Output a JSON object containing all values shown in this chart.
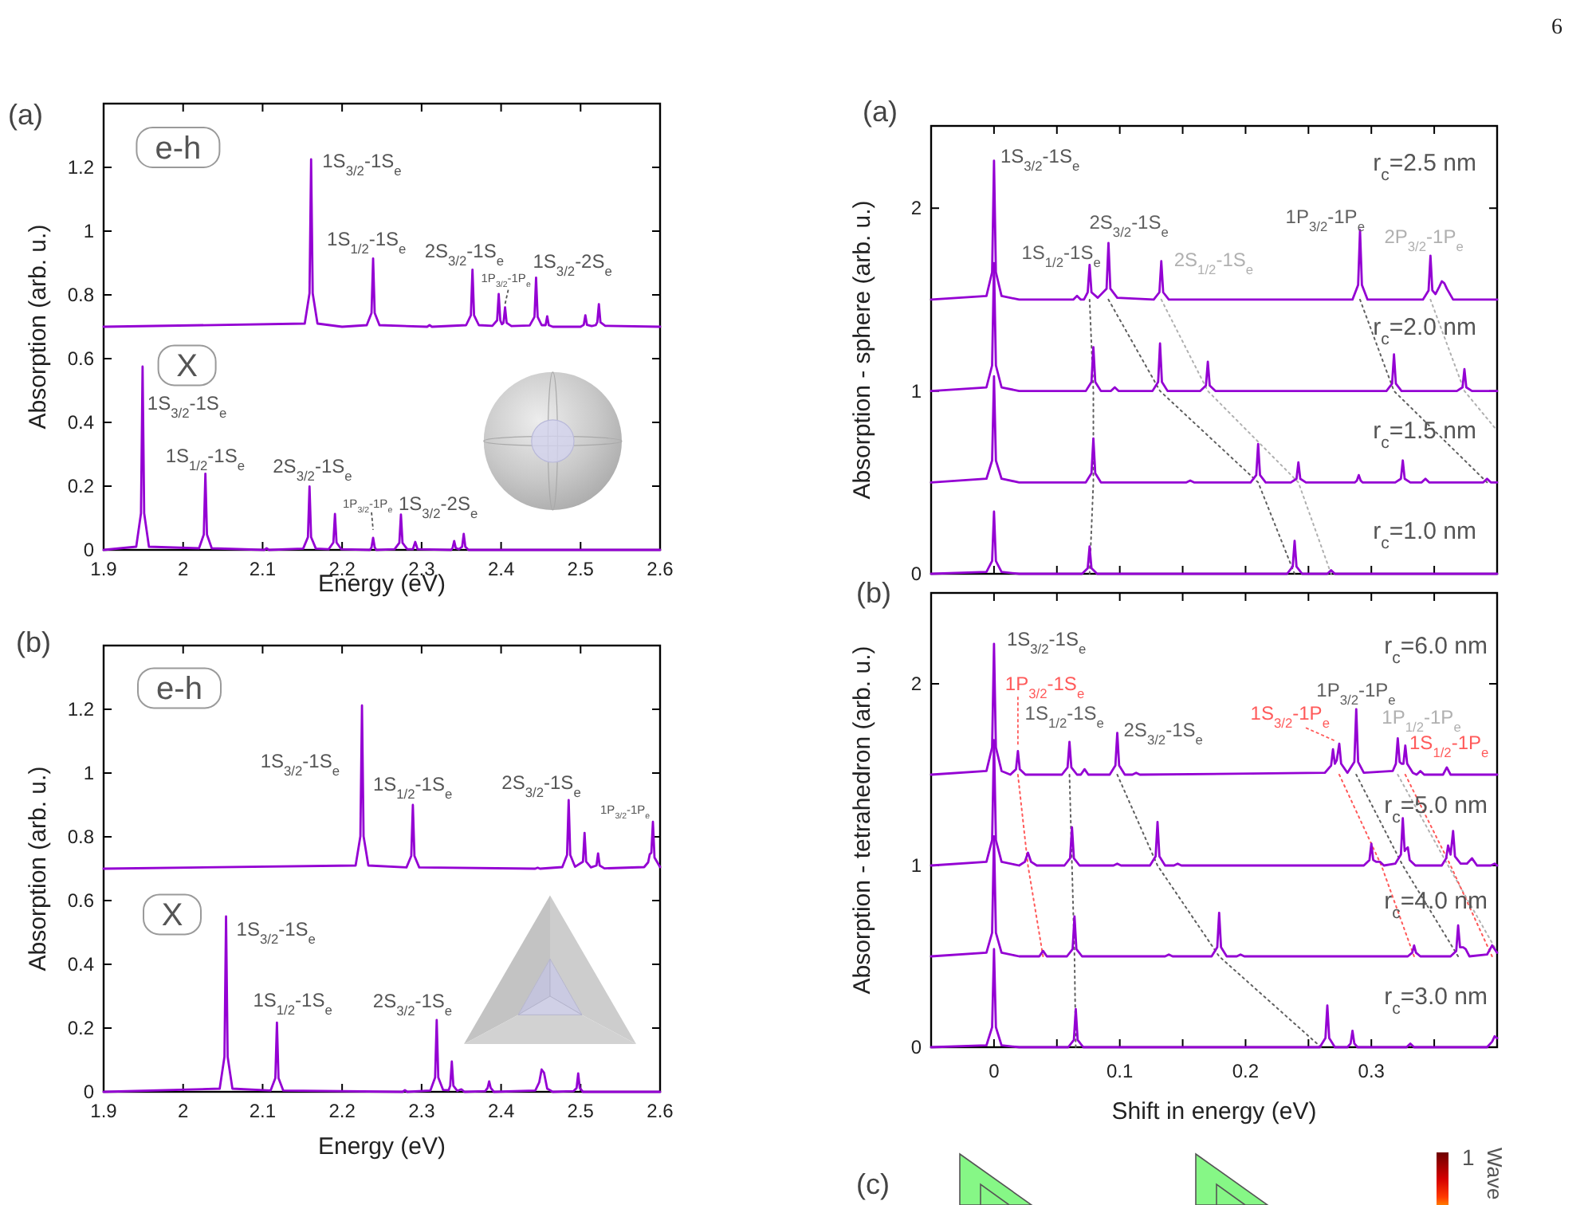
{
  "chart_data": [
    {
      "type": "line",
      "title": "(a)",
      "xlabel": "Energy (eV)",
      "ylabel": "Absorption (arb. u.)",
      "xlim": [
        1.9,
        2.6
      ],
      "ylim": [
        0,
        1.4
      ],
      "xticks": [
        1.9,
        2,
        2.1,
        2.2,
        2.3,
        2.4,
        2.5,
        2.6
      ],
      "yticks": [
        0,
        0.2,
        0.4,
        0.6,
        0.8,
        1,
        1.2
      ],
      "line_style": "solid",
      "series": [
        {
          "color": "#9400d3",
          "x": [
            1.9,
            2.153,
            2.159,
            2.161,
            2.163,
            2.169,
            2.2,
            2.231,
            2.237,
            2.239,
            2.241,
            2.247,
            2.307,
            2.31,
            2.313,
            2.356,
            2.362,
            2.364,
            2.366,
            2.372,
            2.389,
            2.395,
            2.397,
            2.399,
            2.401,
            2.403,
            2.405,
            2.407,
            2.413,
            2.436,
            2.442,
            2.444,
            2.446,
            2.451,
            2.456,
            2.458,
            2.46,
            2.465,
            2.5,
            2.504,
            2.506,
            2.508,
            2.514,
            2.519,
            2.521,
            2.523,
            2.525,
            2.531,
            2.6
          ],
          "values": [
            0.7,
            0.71,
            0.805,
            1.225,
            0.805,
            0.71,
            0.7,
            0.705,
            0.743,
            0.914,
            0.743,
            0.705,
            0.7,
            0.705,
            0.7,
            0.705,
            0.736,
            0.879,
            0.736,
            0.705,
            0.703,
            0.72,
            0.803,
            0.72,
            0.708,
            0.712,
            0.761,
            0.712,
            0.702,
            0.704,
            0.731,
            0.854,
            0.731,
            0.705,
            0.705,
            0.733,
            0.705,
            0.7,
            0.7,
            0.706,
            0.736,
            0.706,
            0.702,
            0.705,
            0.714,
            0.771,
            0.714,
            0.703,
            0.7
          ]
        },
        {
          "color": "#9400d3",
          "x": [
            1.9,
            1.941,
            1.947,
            1.949,
            1.951,
            1.957,
            2.02,
            2.026,
            2.028,
            2.03,
            2.036,
            2.102,
            2.105,
            2.108,
            2.151,
            2.157,
            2.159,
            2.161,
            2.167,
            2.183,
            2.189,
            2.191,
            2.193,
            2.199,
            2.235,
            2.237,
            2.239,
            2.241,
            2.243,
            2.266,
            2.272,
            2.274,
            2.276,
            2.282,
            2.289,
            2.292,
            2.295,
            2.337,
            2.339,
            2.341,
            2.343,
            2.347,
            2.351,
            2.353,
            2.355,
            2.359,
            2.6
          ],
          "values": [
            0,
            0.01,
            0.115,
            0.575,
            0.115,
            0.01,
            0.005,
            0.048,
            0.239,
            0.048,
            0.005,
            0,
            0.005,
            0,
            0.004,
            0.04,
            0.199,
            0.04,
            0.004,
            0.002,
            0.023,
            0.113,
            0.023,
            0.002,
            0,
            0.008,
            0.038,
            0.008,
            0,
            0.002,
            0.022,
            0.111,
            0.022,
            0.002,
            0.002,
            0.025,
            0.002,
            0,
            0.006,
            0.028,
            0.006,
            0.002,
            0.01,
            0.05,
            0.01,
            0,
            0
          ]
        }
      ],
      "annotations": [
        "e-h",
        "X",
        {
          "text": "1S$_{3/2}$-1S$_{e}$",
          "x": 2.161,
          "y": 1.225
        },
        {
          "text": "1S$_{1/2}$-1S$_{e}$",
          "x": 2.239,
          "y": 0.914
        },
        {
          "text": "2S$_{3/2}$-1S$_{e}$",
          "x": 2.364,
          "y": 0.879
        },
        {
          "text": "1P$_{3/2}$-1P$_{e}$",
          "x": 2.405,
          "y": 0.761
        },
        {
          "text": "1S$_{3/2}$-2S$_{e}$",
          "x": 2.444,
          "y": 0.854
        },
        {
          "text": "1S$_{3/2}$-1S$_{e}$",
          "x": 1.949,
          "y": 0.575
        },
        {
          "text": "1S$_{1/2}$-1S$_{e}$",
          "x": 2.028,
          "y": 0.239
        },
        {
          "text": "2S$_{3/2}$-1S$_{e}$",
          "x": 2.159,
          "y": 0.199
        },
        {
          "text": "1P$_{3/2}$-1P$_{e}$",
          "x": 2.239,
          "y": 0.038
        },
        {
          "text": "1S$_{3/2}$-2S$_{e}$",
          "x": 2.274,
          "y": 0.111
        }
      ]
    },
    {
      "type": "line",
      "title": "(b)",
      "xlabel": "Energy (eV)",
      "ylabel": "Absorption (arb. u.)",
      "xlim": [
        1.9,
        2.6
      ],
      "ylim": [
        0,
        1.4
      ],
      "xticks": [
        1.9,
        2,
        2.1,
        2.2,
        2.3,
        2.4,
        2.5,
        2.6
      ],
      "yticks": [
        0,
        0.2,
        0.4,
        0.6,
        0.8,
        1,
        1.2
      ],
      "line_style": "solid",
      "series": [
        {
          "color": "#9400d3",
          "x": [
            1.9,
            2.217,
            2.223,
            2.225,
            2.227,
            2.233,
            2.281,
            2.287,
            2.289,
            2.291,
            2.297,
            2.443,
            2.446,
            2.449,
            2.477,
            2.483,
            2.485,
            2.487,
            2.493,
            2.503,
            2.505,
            2.507,
            2.513,
            2.52,
            2.522,
            2.524,
            2.53,
            2.58,
            2.585,
            2.587,
            2.589,
            2.591,
            2.593,
            2.6
          ],
          "values": [
            0.7,
            0.71,
            0.802,
            1.212,
            0.802,
            0.71,
            0.704,
            0.74,
            0.9,
            0.74,
            0.704,
            0.7,
            0.703,
            0.7,
            0.705,
            0.743,
            0.915,
            0.743,
            0.706,
            0.722,
            0.812,
            0.722,
            0.704,
            0.71,
            0.748,
            0.71,
            0.701,
            0.705,
            0.72,
            0.745,
            0.75,
            0.847,
            0.735,
            0.705
          ]
        },
        {
          "color": "#9400d3",
          "x": [
            1.9,
            2.046,
            2.052,
            2.054,
            2.056,
            2.062,
            2.11,
            2.116,
            2.118,
            2.12,
            2.126,
            2.276,
            2.279,
            2.282,
            2.311,
            2.317,
            2.319,
            2.321,
            2.327,
            2.334,
            2.336,
            2.338,
            2.34,
            2.345,
            2.35,
            2.354,
            2.38,
            2.383,
            2.385,
            2.387,
            2.391,
            2.443,
            2.448,
            2.451,
            2.454,
            2.458,
            2.465,
            2.491,
            2.495,
            2.497,
            2.499,
            2.503,
            2.6
          ],
          "values": [
            0,
            0.01,
            0.11,
            0.55,
            0.11,
            0.01,
            0.004,
            0.043,
            0.217,
            0.043,
            0.004,
            0,
            0.005,
            0,
            0.004,
            0.045,
            0.225,
            0.045,
            0.006,
            0.005,
            0.019,
            0.095,
            0.019,
            0.003,
            0.008,
            0,
            0.002,
            0.012,
            0.033,
            0.012,
            0,
            0.004,
            0.03,
            0.07,
            0.06,
            0.01,
            0,
            0.002,
            0.012,
            0.058,
            0.012,
            0,
            0
          ]
        }
      ],
      "annotations": [
        "e-h",
        "X",
        {
          "text": "1S$_{3/2}$-1S$_{e}$",
          "x": 2.225,
          "y": 1.212
        },
        {
          "text": "1S$_{1/2}$-1S$_{e}$",
          "x": 2.289,
          "y": 0.9
        },
        {
          "text": "2S$_{3/2}$-1S$_{e}$",
          "x": 2.485,
          "y": 0.915
        },
        {
          "text": "1P$_{3/2}$-1P$_{e}$",
          "x": 2.591,
          "y": 0.847
        },
        {
          "text": "1S$_{3/2}$-1S$_{e}$",
          "x": 2.054,
          "y": 0.55
        },
        {
          "text": "1S$_{1/2}$-1S$_{e}$",
          "x": 2.118,
          "y": 0.217
        },
        {
          "text": "2S$_{3/2}$-1S$_{e}$",
          "x": 2.319,
          "y": 0.225
        }
      ]
    },
    {
      "type": "line",
      "title": "(a)",
      "ylabel": "Absorption - sphere (arb. u.)",
      "xlim": [
        -0.05,
        0.4
      ],
      "ylim": [
        0,
        2.45
      ],
      "xticks": [
        0,
        {
          "value": 0.05,
          "label": null
        },
        0.1,
        {
          "value": 0.15,
          "label": null
        },
        0.2,
        {
          "value": 0.25,
          "label": null
        },
        0.3,
        {
          "value": 0.35,
          "label": null
        }
      ],
      "yticks": [
        0,
        1,
        2
      ],
      "tick_labels": "y",
      "line_style": "solid",
      "series": [
        {
          "color": "#9400d3",
          "x": [
            -0.05,
            -0.006,
            -0.0015,
            0,
            0.0015,
            0.006,
            0.02,
            0.063,
            0.066,
            0.069,
            0.0715,
            0.0745,
            0.076,
            0.0775,
            0.0825,
            0.0895,
            0.091,
            0.0925,
            0.098,
            0.127,
            0.1315,
            0.133,
            0.1345,
            0.139,
            0.285,
            0.2895,
            0.291,
            0.2925,
            0.297,
            0.341,
            0.3455,
            0.347,
            0.3485,
            0.351,
            0.354,
            0.356,
            0.358,
            0.36,
            0.365,
            0.4
          ],
          "values": [
            1.5,
            1.52,
            1.65,
            2.26,
            1.65,
            1.52,
            1.5,
            1.5,
            1.52,
            1.5,
            1.5,
            1.54,
            1.69,
            1.54,
            1.51,
            1.56,
            1.81,
            1.56,
            1.51,
            1.5,
            1.54,
            1.71,
            1.54,
            1.5,
            1.5,
            1.58,
            1.88,
            1.58,
            1.5,
            1.5,
            1.55,
            1.74,
            1.55,
            1.53,
            1.57,
            1.6,
            1.59,
            1.56,
            1.5,
            1.5
          ]
        },
        {
          "color": "#9400d3",
          "x": [
            -0.05,
            -0.006,
            -0.0015,
            0,
            0.0015,
            0.006,
            0.02,
            0.073,
            0.0775,
            0.079,
            0.0805,
            0.085,
            0.093,
            0.096,
            0.099,
            0.126,
            0.1305,
            0.132,
            0.1335,
            0.138,
            0.164,
            0.1685,
            0.17,
            0.1715,
            0.176,
            0.312,
            0.3165,
            0.318,
            0.3195,
            0.324,
            0.368,
            0.3725,
            0.374,
            0.3755,
            0.38,
            0.4
          ],
          "values": [
            1,
            1.02,
            1.14,
            1.7,
            1.14,
            1.02,
            1,
            1,
            1.05,
            1.24,
            1.05,
            1,
            1,
            1.02,
            1,
            1,
            1.05,
            1.26,
            1.05,
            1,
            1,
            1.03,
            1.16,
            1.03,
            1,
            1,
            1.04,
            1.2,
            1.04,
            1,
            1,
            1.02,
            1.12,
            1.02,
            1,
            1
          ]
        },
        {
          "color": "#9400d3",
          "x": [
            -0.05,
            -0.006,
            -0.0015,
            0,
            0.0015,
            0.006,
            0.02,
            0.073,
            0.0775,
            0.079,
            0.0805,
            0.085,
            0.153,
            0.156,
            0.159,
            0.204,
            0.2085,
            0.21,
            0.2115,
            0.216,
            0.236,
            0.2405,
            0.242,
            0.2435,
            0.248,
            0.287,
            0.2885,
            0.29,
            0.2915,
            0.293,
            0.319,
            0.3235,
            0.325,
            0.3265,
            0.331,
            0.34,
            0.343,
            0.346,
            0.389,
            0.392,
            0.395,
            0.4
          ],
          "values": [
            0.5,
            0.52,
            0.62,
            1.08,
            0.62,
            0.52,
            0.5,
            0.5,
            0.55,
            0.74,
            0.55,
            0.5,
            0.5,
            0.51,
            0.5,
            0.5,
            0.54,
            0.71,
            0.54,
            0.5,
            0.5,
            0.52,
            0.61,
            0.52,
            0.5,
            0.5,
            0.51,
            0.54,
            0.51,
            0.5,
            0.5,
            0.52,
            0.62,
            0.52,
            0.5,
            0.5,
            0.52,
            0.5,
            0.5,
            0.52,
            0.5,
            0.5
          ]
        },
        {
          "color": "#9400d3",
          "x": [
            -0.05,
            -0.006,
            -0.0015,
            0,
            0.0015,
            0.006,
            0.02,
            0.07,
            0.0745,
            0.076,
            0.0775,
            0.082,
            0.233,
            0.2375,
            0.239,
            0.2405,
            0.245,
            0.265,
            0.268,
            0.271,
            0.4
          ],
          "values": [
            0,
            0.01,
            0.07,
            0.34,
            0.07,
            0.01,
            0,
            0,
            0.03,
            0.15,
            0.03,
            0,
            0,
            0.04,
            0.18,
            0.04,
            0,
            0,
            0.02,
            0,
            0
          ]
        },
        {
          "color": "#606060",
          "line_style": "dotted",
          "x": [
            0.076,
            0.079,
            0.079,
            0.076
          ],
          "values": [
            1.5,
            1,
            0.5,
            0
          ]
        },
        {
          "color": "#606060",
          "line_style": "dotted",
          "x": [
            0.091,
            0.132,
            0.21,
            0.239
          ],
          "values": [
            1.5,
            1,
            0.5,
            0
          ]
        },
        {
          "color": "#b0b0b0",
          "line_style": "dotted",
          "x": [
            0.133,
            0.17,
            0.242,
            0.268
          ],
          "values": [
            1.5,
            1,
            0.5,
            0
          ]
        },
        {
          "color": "#606060",
          "line_style": "dotted",
          "x": [
            0.291,
            0.318,
            0.392
          ],
          "values": [
            1.5,
            1,
            0.5
          ]
        },
        {
          "color": "#b0b0b0",
          "line_style": "dotted",
          "x": [
            0.347,
            0.374,
            0.398
          ],
          "values": [
            1.5,
            1,
            0.8
          ]
        }
      ],
      "annotations": [
        "6",
        "r$_{c}$=2.5 nm",
        "r$_{c}$=2.0 nm",
        "r$_{c}$=1.5 nm",
        "r$_{c}$=1.0 nm",
        {
          "text": "1S$_{3/2}$-1S$_{e}$",
          "x": 0,
          "y": 2.26
        },
        {
          "text": "1S$_{1/2}$-1S$_{e}$",
          "x": 0.076,
          "y": 1.69
        },
        {
          "text": "2S$_{3/2}$-1S$_{e}$",
          "x": 0.091,
          "y": 1.81
        },
        {
          "text": "2S$_{1/2}$-1S$_{e}$",
          "x": 0.133,
          "y": 1.71
        },
        {
          "text": "1P$_{3/2}$-1P$_{e}$",
          "x": 0.291,
          "y": 1.88
        },
        {
          "text": "2P$_{3/2}$-1P$_{e}$",
          "x": 0.347,
          "y": 1.74
        }
      ]
    },
    {
      "type": "line",
      "title": "(b)",
      "xlabel": "Shift in energy (eV)",
      "ylabel": "Absorption - tetrahedron (arb. u.)",
      "xlim": [
        -0.05,
        0.4
      ],
      "ylim": [
        0,
        2.5
      ],
      "xticks": [
        0,
        {
          "value": 0.05,
          "label": null
        },
        0.1,
        {
          "value": 0.15,
          "label": null
        },
        0.2,
        {
          "value": 0.25,
          "label": null
        },
        0.3,
        {
          "value": 0.35,
          "label": null
        }
      ],
      "yticks": [
        0,
        1,
        2
      ],
      "line_style": "solid",
      "series": [
        {
          "color": "#9400d3",
          "x": [
            -0.05,
            -0.006,
            -0.0015,
            0,
            0.0015,
            0.006,
            0.013,
            0.0175,
            0.019,
            0.0205,
            0.025,
            0.054,
            0.0585,
            0.06,
            0.0615,
            0.066,
            0.069,
            0.072,
            0.075,
            0.092,
            0.0965,
            0.098,
            0.0995,
            0.104,
            0.11,
            0.113,
            0.116,
            0.263,
            0.268,
            0.2695,
            0.271,
            0.2725,
            0.2745,
            0.276,
            0.281,
            0.2865,
            0.288,
            0.2895,
            0.294,
            0.317,
            0.3195,
            0.321,
            0.3225,
            0.324,
            0.3255,
            0.327,
            0.3285,
            0.333,
            0.336,
            0.339,
            0.342,
            0.357,
            0.36,
            0.363,
            0.4
          ],
          "values": [
            1.5,
            1.52,
            1.65,
            2.22,
            1.65,
            1.52,
            1.5,
            1.53,
            1.63,
            1.53,
            1.5,
            1.5,
            1.54,
            1.68,
            1.54,
            1.5,
            1.5,
            1.53,
            1.5,
            1.5,
            1.55,
            1.73,
            1.55,
            1.5,
            1.5,
            1.51,
            1.5,
            1.51,
            1.55,
            1.64,
            1.56,
            1.58,
            1.67,
            1.56,
            1.51,
            1.57,
            1.86,
            1.57,
            1.51,
            1.52,
            1.56,
            1.7,
            1.57,
            1.56,
            1.56,
            1.66,
            1.56,
            1.51,
            1.5,
            1.52,
            1.5,
            1.5,
            1.54,
            1.5,
            1.5
          ]
        },
        {
          "color": "#9400d3",
          "x": [
            -0.05,
            -0.006,
            -0.0015,
            0,
            0.0015,
            0.006,
            0.02,
            0.0245,
            0.027,
            0.0295,
            0.034,
            0.056,
            0.0605,
            0.062,
            0.0635,
            0.068,
            0.095,
            0.098,
            0.101,
            0.124,
            0.1285,
            0.13,
            0.1315,
            0.136,
            0.143,
            0.146,
            0.149,
            0.294,
            0.2985,
            0.3,
            0.3015,
            0.304,
            0.307,
            0.31,
            0.319,
            0.3235,
            0.325,
            0.3265,
            0.3275,
            0.329,
            0.3305,
            0.335,
            0.356,
            0.3595,
            0.361,
            0.363,
            0.365,
            0.3665,
            0.371,
            0.376,
            0.38,
            0.384,
            0.395,
            0.398,
            0.4
          ],
          "values": [
            1,
            1.02,
            1.14,
            1.69,
            1.14,
            1.02,
            1,
            1.02,
            1.07,
            1.02,
            1,
            1,
            1.04,
            1.21,
            1.04,
            1,
            1,
            1.01,
            1,
            1,
            1.05,
            1.24,
            1.05,
            1,
            1,
            1.01,
            1,
            1,
            1.03,
            1.12,
            1.03,
            1.02,
            1.02,
            1,
            1.01,
            1.06,
            1.26,
            1.08,
            1.09,
            1.1,
            1.03,
            1,
            1,
            1.04,
            1.11,
            1.06,
            1.19,
            1.05,
            1.01,
            1.01,
            1.04,
            1,
            1,
            1.01,
            1
          ]
        },
        {
          "color": "#9400d3",
          "x": [
            -0.05,
            -0.006,
            -0.0015,
            0,
            0.0015,
            0.006,
            0.02,
            0.036,
            0.039,
            0.042,
            0.058,
            0.0625,
            0.064,
            0.0655,
            0.07,
            0.136,
            0.139,
            0.142,
            0.173,
            0.1775,
            0.179,
            0.1805,
            0.185,
            0.193,
            0.196,
            0.199,
            0.329,
            0.3325,
            0.334,
            0.3355,
            0.339,
            0.363,
            0.3675,
            0.369,
            0.3705,
            0.373,
            0.375,
            0.378,
            0.392,
            0.396,
            0.4
          ],
          "values": [
            0.5,
            0.52,
            0.63,
            1.16,
            0.63,
            0.52,
            0.5,
            0.5,
            0.53,
            0.5,
            0.5,
            0.54,
            0.72,
            0.54,
            0.5,
            0.5,
            0.51,
            0.5,
            0.5,
            0.55,
            0.74,
            0.55,
            0.5,
            0.5,
            0.51,
            0.5,
            0.5,
            0.52,
            0.56,
            0.52,
            0.5,
            0.5,
            0.53,
            0.67,
            0.55,
            0.55,
            0.54,
            0.5,
            0.51,
            0.56,
            0.52
          ]
        },
        {
          "color": "#9400d3",
          "x": [
            -0.05,
            -0.006,
            -0.0015,
            0,
            0.0015,
            0.006,
            0.02,
            0.059,
            0.0635,
            0.065,
            0.0665,
            0.071,
            0.259,
            0.2635,
            0.265,
            0.2665,
            0.271,
            0.281,
            0.2835,
            0.285,
            0.2865,
            0.289,
            0.328,
            0.331,
            0.334,
            0.392,
            0.396,
            0.398,
            0.4
          ],
          "values": [
            0,
            0.01,
            0.11,
            0.54,
            0.11,
            0.01,
            0,
            0,
            0.04,
            0.21,
            0.04,
            0,
            0,
            0.05,
            0.23,
            0.05,
            0,
            0,
            0.02,
            0.09,
            0.02,
            0,
            0,
            0.02,
            0,
            0,
            0.03,
            0.06,
            0.05
          ]
        },
        {
          "color": "#ff5a5a",
          "line_style": "dotted",
          "x": [
            0.019,
            0.027,
            0.039
          ],
          "values": [
            1.5,
            1,
            0.5
          ]
        },
        {
          "color": "#606060",
          "line_style": "dotted",
          "x": [
            0.06,
            0.062,
            0.064,
            0.065
          ],
          "values": [
            1.5,
            1,
            0.5,
            0
          ]
        },
        {
          "color": "#606060",
          "line_style": "dotted",
          "x": [
            0.098,
            0.13,
            0.179,
            0.26
          ],
          "values": [
            1.5,
            1,
            0.5,
            0
          ]
        },
        {
          "color": "#ff5a5a",
          "line_style": "dotted",
          "x": [
            0.2745,
            0.308,
            0.334
          ],
          "values": [
            1.5,
            1,
            0.5
          ]
        },
        {
          "color": "#606060",
          "line_style": "dotted",
          "x": [
            0.288,
            0.325,
            0.369
          ],
          "values": [
            1.5,
            1,
            0.5
          ]
        },
        {
          "color": "#b0b0b0",
          "line_style": "dotted",
          "x": [
            0.321,
            0.361,
            0.398
          ],
          "values": [
            1.5,
            1,
            0.55
          ]
        },
        {
          "color": "#ff5a5a",
          "line_style": "dotted",
          "x": [
            0.327,
            0.363,
            0.396
          ],
          "values": [
            1.5,
            1,
            0.5
          ]
        }
      ],
      "annotations": [
        "r$_{c}$=6.0 nm",
        "r$_{c}$=5.0 nm",
        "r$_{c}$=4.0 nm",
        "r$_{c}$=3.0 nm",
        {
          "text": "1S$_{3/2}$-1S$_{e}$",
          "x": 0,
          "y": 2.22
        },
        {
          "text": "1P$_{3/2}$-1S$_{e}$",
          "x": 0.019,
          "y": 1.63
        },
        {
          "text": "1S$_{1/2}$-1S$_{e}$",
          "x": 0.06,
          "y": 1.68
        },
        {
          "text": "2S$_{3/2}$-1S$_{e}$",
          "x": 0.098,
          "y": 1.73
        },
        {
          "text": "1S$_{3/2}$-1P$_{e}$",
          "x": 0.2745,
          "y": 1.67
        },
        {
          "text": "1P$_{3/2}$-1P$_{e}$",
          "x": 0.288,
          "y": 1.86
        },
        {
          "text": "1P$_{1/2}$-1P$_{e}$",
          "x": 0.321,
          "y": 1.7
        },
        {
          "text": "1S$_{1/2}$-1P$_{e}$",
          "x": 0.327,
          "y": 1.66
        }
      ]
    },
    {
      "type": "other",
      "title": "(c)",
      "clabel": "Wave",
      "annotations": [
        "1"
      ]
    }
  ]
}
